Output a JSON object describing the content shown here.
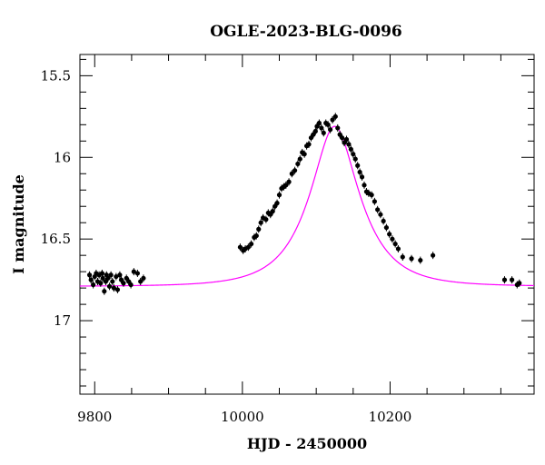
{
  "chart_data": {
    "type": "scatter",
    "title": "OGLE-2023-BLG-0096",
    "xlabel": "HJD - 2450000",
    "ylabel": "I magnitude",
    "xlim": [
      9780,
      10395
    ],
    "ylim": [
      17.45,
      15.37
    ],
    "y_axis_inverted": true,
    "grid": false,
    "x_ticks": [
      9800,
      10000,
      10200
    ],
    "y_ticks": [
      15.5,
      16,
      16.5,
      17
    ],
    "x_tick_labels": [
      "9800",
      "10000",
      "10200"
    ],
    "y_tick_labels": [
      "15.5",
      "16",
      "16.5",
      "17"
    ],
    "marker_color": "#000000",
    "model_color": "#ff00ff",
    "model": {
      "name": "model",
      "t0": 10125,
      "baseline_mag": 16.79,
      "peak_mag": 15.81,
      "tE": 62
    },
    "series": [
      {
        "points": [
          [
            9793,
            16.72
          ],
          [
            9795,
            16.75
          ],
          [
            9798,
            16.78
          ],
          [
            9800,
            16.73
          ],
          [
            9802,
            16.71
          ],
          [
            9804,
            16.76
          ],
          [
            9806,
            16.72
          ],
          [
            9808,
            16.77
          ],
          [
            9810,
            16.71
          ],
          [
            9811,
            16.74
          ],
          [
            9813,
            16.82
          ],
          [
            9815,
            16.76
          ],
          [
            9816,
            16.72
          ],
          [
            9818,
            16.74
          ],
          [
            9820,
            16.79
          ],
          [
            9822,
            16.72
          ],
          [
            9824,
            16.76
          ],
          [
            9826,
            16.8
          ],
          [
            9829,
            16.73
          ],
          [
            9831,
            16.81
          ],
          [
            9834,
            16.72
          ],
          [
            9836,
            16.75
          ],
          [
            9839,
            16.77
          ],
          [
            9843,
            16.74
          ],
          [
            9846,
            16.76
          ],
          [
            9849,
            16.78
          ],
          [
            9853,
            16.7
          ],
          [
            9858,
            16.71
          ],
          [
            9862,
            16.76
          ],
          [
            9866,
            16.74
          ],
          [
            9997,
            16.55
          ],
          [
            10001,
            16.57
          ],
          [
            10004,
            16.56
          ],
          [
            10008,
            16.55
          ],
          [
            10012,
            16.53
          ],
          [
            10016,
            16.49
          ],
          [
            10019,
            16.48
          ],
          [
            10022,
            16.44
          ],
          [
            10025,
            16.4
          ],
          [
            10028,
            16.37
          ],
          [
            10032,
            16.38
          ],
          [
            10035,
            16.34
          ],
          [
            10038,
            16.35
          ],
          [
            10041,
            16.33
          ],
          [
            10044,
            16.3
          ],
          [
            10047,
            16.28
          ],
          [
            10050,
            16.23
          ],
          [
            10053,
            16.19
          ],
          [
            10056,
            16.18
          ],
          [
            10059,
            16.17
          ],
          [
            10063,
            16.15
          ],
          [
            10067,
            16.1
          ],
          [
            10071,
            16.08
          ],
          [
            10075,
            16.04
          ],
          [
            10078,
            16.01
          ],
          [
            10081,
            15.97
          ],
          [
            10084,
            15.98
          ],
          [
            10087,
            15.93
          ],
          [
            10090,
            15.92
          ],
          [
            10093,
            15.88
          ],
          [
            10096,
            15.86
          ],
          [
            10099,
            15.84
          ],
          [
            10101,
            15.81
          ],
          [
            10104,
            15.79
          ],
          [
            10107,
            15.82
          ],
          [
            10110,
            15.85
          ],
          [
            10113,
            15.79
          ],
          [
            10116,
            15.8
          ],
          [
            10119,
            15.83
          ],
          [
            10122,
            15.77
          ],
          [
            10126,
            15.75
          ],
          [
            10129,
            15.82
          ],
          [
            10132,
            15.86
          ],
          [
            10135,
            15.88
          ],
          [
            10138,
            15.91
          ],
          [
            10141,
            15.89
          ],
          [
            10144,
            15.92
          ],
          [
            10147,
            15.95
          ],
          [
            10150,
            15.98
          ],
          [
            10153,
            16.01
          ],
          [
            10156,
            16.05
          ],
          [
            10159,
            16.09
          ],
          [
            10162,
            16.12
          ],
          [
            10165,
            16.17
          ],
          [
            10168,
            16.21
          ],
          [
            10171,
            16.22
          ],
          [
            10175,
            16.23
          ],
          [
            10179,
            16.27
          ],
          [
            10183,
            16.32
          ],
          [
            10187,
            16.35
          ],
          [
            10191,
            16.39
          ],
          [
            10195,
            16.43
          ],
          [
            10199,
            16.47
          ],
          [
            10203,
            16.5
          ],
          [
            10207,
            16.53
          ],
          [
            10211,
            16.56
          ],
          [
            10217,
            16.61
          ],
          [
            10229,
            16.62
          ],
          [
            10241,
            16.63
          ],
          [
            10258,
            16.6
          ],
          [
            10355,
            16.75
          ],
          [
            10365,
            16.75
          ],
          [
            10372,
            16.78
          ],
          [
            10375,
            16.77
          ]
        ]
      }
    ]
  }
}
